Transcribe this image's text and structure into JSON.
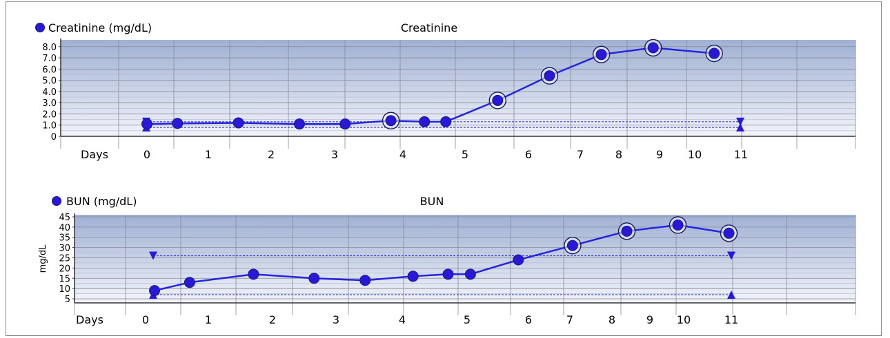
{
  "colors": {
    "series": "#2424e0",
    "marker": "#2a18d8",
    "ref_line": "#3a3ad8",
    "plot_top": "#9fb0d4",
    "plot_bottom": "#f2f4fa",
    "grid": "#8a8a95"
  },
  "chart_data": [
    {
      "type": "line",
      "legend": "Creatinine (mg/dL)",
      "title": "Creatinine",
      "xlabel": "Days",
      "ylabel": "",
      "y_ticks": [
        "0",
        "1.0",
        "2.0",
        "3.0",
        "4.0",
        "5.0",
        "6.0",
        "7.0",
        "8.0"
      ],
      "ylim": [
        0,
        8.6
      ],
      "x_ticks": [
        "0",
        "1",
        "2",
        "3",
        "4",
        "5",
        "6",
        "7",
        "8",
        "9",
        "10",
        "11"
      ],
      "x": [
        0,
        0.5,
        1.5,
        2.5,
        3.25,
        4.0,
        4.55,
        4.9,
        5.75,
        6.6,
        7.45,
        8.3,
        9.3
      ],
      "values": [
        1.1,
        1.15,
        1.2,
        1.1,
        1.1,
        1.4,
        1.3,
        1.3,
        3.2,
        5.4,
        7.3,
        7.9,
        7.4
      ],
      "highlighted": [
        false,
        false,
        false,
        false,
        false,
        true,
        false,
        false,
        true,
        true,
        true,
        true,
        true
      ],
      "reference_lines": [
        {
          "value": 1.3,
          "x_start": 0,
          "x_end": 9.3
        },
        {
          "value": 0.8,
          "x_start": 0,
          "x_end": 9.3
        }
      ]
    },
    {
      "type": "line",
      "legend": "BUN (mg/dL)",
      "title": "BUN",
      "xlabel": "Days",
      "ylabel": "mg/dL",
      "y_ticks": [
        "5",
        "10",
        "15",
        "20",
        "25",
        "30",
        "35",
        "40",
        "45"
      ],
      "ylim": [
        3,
        46
      ],
      "x_ticks": [
        "0",
        "1",
        "2",
        "3",
        "4",
        "5",
        "6",
        "7",
        "8",
        "9",
        "10",
        "11"
      ],
      "x": [
        0,
        0.55,
        1.55,
        2.5,
        3.3,
        4.05,
        4.6,
        4.95,
        5.7,
        6.55,
        7.4,
        8.2,
        9.0
      ],
      "values": [
        9,
        13,
        17,
        15,
        14,
        16,
        17,
        17,
        24,
        31,
        38,
        41,
        37
      ],
      "highlighted": [
        false,
        false,
        false,
        false,
        false,
        false,
        false,
        false,
        false,
        true,
        true,
        true,
        true
      ],
      "reference_lines": [
        {
          "value": 26,
          "x_start": 0,
          "x_end": 9.0
        },
        {
          "value": 7,
          "x_start": 0,
          "x_end": 9.0
        }
      ]
    }
  ]
}
